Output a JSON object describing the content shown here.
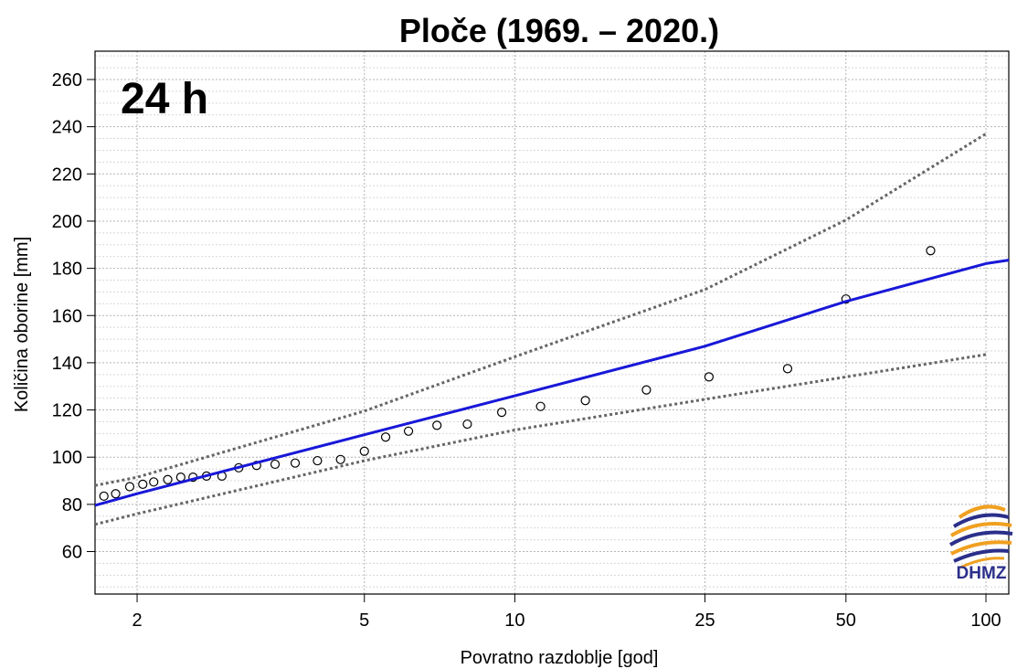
{
  "chart_data": {
    "type": "scatter",
    "title": "Ploče (1969. – 2020.)",
    "duration_label": "24 h",
    "xlabel": "Povratno razdoblje [god]",
    "ylabel": "Količina oborine [mm]",
    "x_scale": "gumbel-reduced-variate",
    "xlim": [
      1.74,
      112
    ],
    "ylim": [
      42,
      272
    ],
    "x_ticks": [
      2,
      5,
      10,
      25,
      50,
      100
    ],
    "y_ticks": [
      60,
      80,
      100,
      120,
      140,
      160,
      180,
      200,
      220,
      240,
      260
    ],
    "grid": true,
    "series": [
      {
        "kind": "points",
        "marker": "open-circle",
        "color": "#000000",
        "points": [
          {
            "x": 1.79,
            "y": 83.5
          },
          {
            "x": 1.86,
            "y": 84.5
          },
          {
            "x": 1.95,
            "y": 87.5
          },
          {
            "x": 2.04,
            "y": 88.5
          },
          {
            "x": 2.12,
            "y": 89.5
          },
          {
            "x": 2.23,
            "y": 90.5
          },
          {
            "x": 2.34,
            "y": 91.5
          },
          {
            "x": 2.45,
            "y": 91.5
          },
          {
            "x": 2.58,
            "y": 92.0
          },
          {
            "x": 2.74,
            "y": 92.0
          },
          {
            "x": 2.93,
            "y": 95.5
          },
          {
            "x": 3.15,
            "y": 96.5
          },
          {
            "x": 3.4,
            "y": 97.0
          },
          {
            "x": 3.7,
            "y": 97.5
          },
          {
            "x": 4.07,
            "y": 98.5
          },
          {
            "x": 4.5,
            "y": 99.0
          },
          {
            "x": 5.0,
            "y": 102.5
          },
          {
            "x": 5.5,
            "y": 108.5
          },
          {
            "x": 6.1,
            "y": 111.0
          },
          {
            "x": 6.95,
            "y": 113.5
          },
          {
            "x": 8.0,
            "y": 114.0
          },
          {
            "x": 9.4,
            "y": 119.0
          },
          {
            "x": 11.3,
            "y": 121.5
          },
          {
            "x": 14.0,
            "y": 124.0
          },
          {
            "x": 18.8,
            "y": 128.5
          },
          {
            "x": 25.5,
            "y": 134.0
          },
          {
            "x": 37.5,
            "y": 137.5
          },
          {
            "x": 50.0,
            "y": 167.0
          },
          {
            "x": 76.0,
            "y": 187.5
          }
        ]
      },
      {
        "kind": "line",
        "style": "solid",
        "color": "#1818d8",
        "points": [
          {
            "x": 1.74,
            "y": 79.6
          },
          {
            "x": 2,
            "y": 84.5
          },
          {
            "x": 5,
            "y": 109.5
          },
          {
            "x": 10,
            "y": 126.0
          },
          {
            "x": 25,
            "y": 147.0
          },
          {
            "x": 50,
            "y": 166.0
          },
          {
            "x": 100,
            "y": 182.0
          },
          {
            "x": 112,
            "y": 183.5
          }
        ]
      },
      {
        "kind": "line",
        "style": "dotted",
        "color": "#666666",
        "points": [
          {
            "x": 1.74,
            "y": 88.0
          },
          {
            "x": 2,
            "y": 91.5
          },
          {
            "x": 5,
            "y": 119.5
          },
          {
            "x": 10,
            "y": 142.5
          },
          {
            "x": 25,
            "y": 171.0
          },
          {
            "x": 50,
            "y": 200.5
          },
          {
            "x": 100,
            "y": 237.0
          }
        ]
      },
      {
        "kind": "line",
        "style": "dotted",
        "color": "#666666",
        "points": [
          {
            "x": 1.74,
            "y": 71.5
          },
          {
            "x": 2,
            "y": 76.0
          },
          {
            "x": 5,
            "y": 98.5
          },
          {
            "x": 10,
            "y": 111.5
          },
          {
            "x": 25,
            "y": 124.5
          },
          {
            "x": 50,
            "y": 134.0
          },
          {
            "x": 100,
            "y": 143.5
          }
        ]
      }
    ]
  },
  "logo": {
    "text": "DHMZ",
    "color_blue": "#2b2f8a",
    "color_orange": "#f0a020"
  }
}
